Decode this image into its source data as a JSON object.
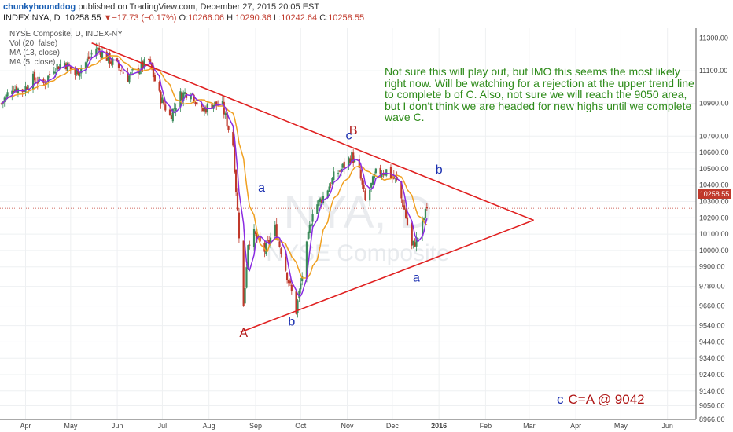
{
  "header": {
    "user": "chunkyhounddog",
    "published": "published on TradingView.com, December 27, 2015 20:05 EST",
    "symbol": "INDEX:NYA, D",
    "last": "10258.55",
    "change": "▼−17.73 (−0.17%)",
    "o_label": "O:",
    "o_val": "10266.06",
    "h_label": "H:",
    "h_val": "10290.36",
    "l_label": "L:",
    "l_val": "10242.64",
    "c_label": "C:",
    "c_val": "10258.55"
  },
  "legend": {
    "title": "NYSE Composite, D, INDEX-NY",
    "vol": "Vol (20, false)",
    "ma13": "MA (13, close)",
    "ma5": "MA (5, close)"
  },
  "watermark": {
    "big": "NYA, D",
    "small": "NYSE Composite"
  },
  "annotation": "Not sure this will play out, but IMO this seems the most likely right now. Will be watching for a rejection at the upper trend line to complete b of C. Also, not sure we will reach the 9050 area, but I don't think we are headed for new highs until we complete wave C.",
  "wave_labels": [
    {
      "text": "A",
      "color": "#b01818",
      "x": "2015-08-24",
      "y": 9470
    },
    {
      "text": "a",
      "color": "#1a2fb0",
      "x": "2015-09-05",
      "y": 10360
    },
    {
      "text": "b",
      "color": "#1a2fb0",
      "x": "2015-09-25",
      "y": 9540
    },
    {
      "text": "B",
      "color": "#b01818",
      "x": "2015-11-05",
      "y": 10710
    },
    {
      "text": "c",
      "color": "#1a2fb0",
      "x": "2015-11-02",
      "y": 10680
    },
    {
      "text": "b",
      "color": "#1a2fb0",
      "x": "2016-01-01",
      "y": 10470
    },
    {
      "text": "a",
      "color": "#1a2fb0",
      "x": "2015-12-17",
      "y": 9810
    }
  ],
  "target": {
    "c": "c",
    "text": "C=A @ 9042"
  },
  "price_tag": "10258.55",
  "colors": {
    "trendline": "#e02020",
    "ma13": "#f0a020",
    "ma5": "#8a2be2",
    "up": "#3a8a5a",
    "down": "#c0392b",
    "note": "#2e8b1a"
  },
  "chart_data": {
    "type": "candlestick",
    "x_range": [
      "2015-03-15",
      "2016-06-20"
    ],
    "y_range": [
      8966,
      11360
    ],
    "y_ticks": [
      8966,
      9050,
      9140,
      9240,
      9340,
      9440,
      9540,
      9660,
      9780,
      9900,
      10000,
      10100,
      10200,
      10300,
      10400,
      10500,
      10600,
      10700,
      10900,
      11100,
      11300
    ],
    "y_tick_labels": [
      "8966.00",
      "9050.00",
      "9140.00",
      "9240.00",
      "9340.00",
      "9440.00",
      "9540.00",
      "9660.00",
      "9780.00",
      "9900.00",
      "10000.00",
      "10100.00",
      "10200.00",
      "10300.00",
      "10400.00",
      "10500.00",
      "10600.00",
      "10700.00",
      "10900.00",
      "11100.00",
      "11300.00"
    ],
    "x_ticks": [
      {
        "label": "Apr",
        "date": "2015-04-01"
      },
      {
        "label": "May",
        "date": "2015-05-01"
      },
      {
        "label": "Jun",
        "date": "2015-06-01"
      },
      {
        "label": "Jul",
        "date": "2015-07-01"
      },
      {
        "label": "Aug",
        "date": "2015-08-01"
      },
      {
        "label": "Sep",
        "date": "2015-09-01"
      },
      {
        "label": "Oct",
        "date": "2015-10-01"
      },
      {
        "label": "Nov",
        "date": "2015-11-01"
      },
      {
        "label": "Dec",
        "date": "2015-12-01"
      },
      {
        "label": "2016",
        "date": "2016-01-01"
      },
      {
        "label": "Feb",
        "date": "2016-02-01"
      },
      {
        "label": "Mar",
        "date": "2016-03-01"
      },
      {
        "label": "Apr",
        "date": "2016-04-01"
      },
      {
        "label": "May",
        "date": "2016-05-01"
      },
      {
        "label": "Jun",
        "date": "2016-06-01"
      }
    ],
    "anchors": [
      [
        "2015-03-16",
        10900
      ],
      [
        "2015-03-23",
        11000
      ],
      [
        "2015-03-30",
        10980
      ],
      [
        "2015-04-06",
        11050
      ],
      [
        "2015-04-13",
        11020
      ],
      [
        "2015-04-20",
        11120
      ],
      [
        "2015-04-27",
        11150
      ],
      [
        "2015-05-04",
        11080
      ],
      [
        "2015-05-11",
        11150
      ],
      [
        "2015-05-18",
        11240
      ],
      [
        "2015-05-25",
        11180
      ],
      [
        "2015-06-01",
        11130
      ],
      [
        "2015-06-08",
        11060
      ],
      [
        "2015-06-15",
        11110
      ],
      [
        "2015-06-22",
        11160
      ],
      [
        "2015-06-29",
        10950
      ],
      [
        "2015-07-06",
        10820
      ],
      [
        "2015-07-13",
        10950
      ],
      [
        "2015-07-20",
        10980
      ],
      [
        "2015-07-27",
        10850
      ],
      [
        "2015-08-03",
        10900
      ],
      [
        "2015-08-10",
        10880
      ],
      [
        "2015-08-17",
        10650
      ],
      [
        "2015-08-21",
        10100
      ],
      [
        "2015-08-24",
        9650
      ],
      [
        "2015-08-27",
        10050
      ],
      [
        "2015-08-31",
        10100
      ],
      [
        "2015-09-07",
        10000
      ],
      [
        "2015-09-14",
        10130
      ],
      [
        "2015-09-18",
        10000
      ],
      [
        "2015-09-22",
        9850
      ],
      [
        "2015-09-28",
        9630
      ],
      [
        "2015-10-02",
        9850
      ],
      [
        "2015-10-09",
        10250
      ],
      [
        "2015-10-16",
        10330
      ],
      [
        "2015-10-23",
        10450
      ],
      [
        "2015-10-30",
        10520
      ],
      [
        "2015-11-04",
        10580
      ],
      [
        "2015-11-09",
        10480
      ],
      [
        "2015-11-13",
        10300
      ],
      [
        "2015-11-20",
        10470
      ],
      [
        "2015-11-27",
        10490
      ],
      [
        "2015-12-04",
        10420
      ],
      [
        "2015-12-09",
        10250
      ],
      [
        "2015-12-14",
        10020
      ],
      [
        "2015-12-18",
        10080
      ],
      [
        "2015-12-24",
        10258
      ]
    ],
    "moving_averages": [
      {
        "name": "MA (13, close)",
        "period": 13
      },
      {
        "name": "MA (5, close)",
        "period": 5
      }
    ],
    "trendlines": [
      {
        "from": [
          "2015-05-15",
          11270
        ],
        "to": [
          "2016-03-04",
          10185
        ]
      },
      {
        "from": [
          "2015-08-22",
          9500
        ],
        "to": [
          "2016-03-04",
          10185
        ]
      }
    ],
    "last_price": 10258.55
  }
}
